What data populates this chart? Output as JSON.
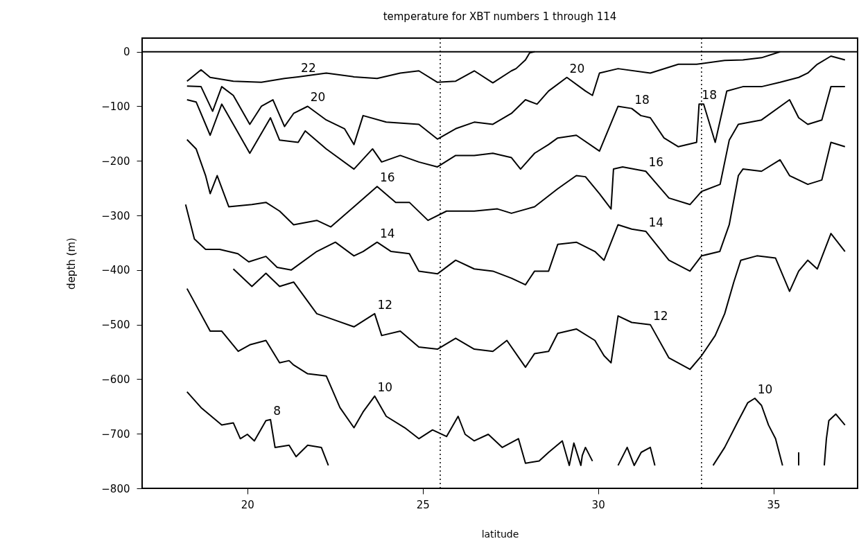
{
  "chart_data": {
    "type": "line",
    "title": "temperature for XBT numbers 1 through 114",
    "xlabel": "latitude",
    "ylabel": "depth (m)",
    "xlim": [
      17,
      37.4
    ],
    "xticks": [
      20,
      25,
      30,
      35
    ],
    "ylim": [
      -800,
      25
    ],
    "yticks": [
      0,
      -100,
      -200,
      -300,
      -400,
      -500,
      -600,
      -700,
      -800
    ],
    "grid": false,
    "marker": "none",
    "line_style": "solid",
    "series": [
      {
        "color": "#000000",
        "x": [
          18.28,
          18.68,
          18.94,
          19.6,
          20.4,
          21.06,
          21.45,
          22.25,
          23.04,
          23.7,
          24.36,
          24.89,
          25.42,
          25.94,
          26.47,
          27.0,
          27.53,
          27.66,
          27.93,
          28.05,
          28.19
        ],
        "values": [
          -54,
          -33,
          -47,
          -54,
          -56,
          -49,
          -46,
          -39,
          -46,
          -49,
          -39,
          -35,
          -56,
          -54,
          -35,
          -57,
          -35,
          -31,
          -15,
          -2,
          0
        ]
      },
      {
        "color": "#000000",
        "x": [
          18.28,
          18.68,
          19.01,
          19.27,
          19.6,
          20.07,
          20.4,
          20.73,
          21.06,
          21.32,
          21.72,
          22.25,
          22.77,
          23.04,
          23.3,
          23.96,
          24.89,
          25.42,
          25.94,
          26.47,
          27.0,
          27.53,
          27.93,
          28.26,
          28.59,
          29.11,
          29.64,
          29.84,
          30.04,
          30.57,
          31.49,
          32.29,
          32.81,
          33.61,
          34.13,
          34.66,
          35.19
        ],
        "values": [
          -63,
          -64,
          -109,
          -64,
          -80,
          -133,
          -100,
          -88,
          -137,
          -113,
          -100,
          -125,
          -141,
          -170,
          -117,
          -129,
          -133,
          -160,
          -141,
          -129,
          -133,
          -113,
          -88,
          -96,
          -72,
          -47,
          -72,
          -80,
          -39,
          -31,
          -39,
          -23,
          -23,
          -16,
          -15,
          -11,
          0
        ]
      },
      {
        "color": "#000000",
        "x": [
          18.28,
          18.54,
          18.94,
          19.27,
          19.6,
          20.07,
          20.66,
          20.92,
          21.45,
          21.65,
          22.25,
          23.04,
          23.57,
          23.83,
          24.36,
          24.89,
          25.42,
          25.94,
          26.47,
          27.0,
          27.53,
          27.79,
          28.19,
          28.59,
          28.85,
          29.38,
          30.04,
          30.57,
          30.96,
          31.22,
          31.49,
          31.88,
          32.29,
          32.81,
          32.88,
          33.01,
          33.34,
          33.67,
          34.13,
          34.66,
          35.19,
          35.72,
          35.98,
          36.25,
          36.64,
          37.04
        ],
        "values": [
          -88,
          -92,
          -153,
          -96,
          -133,
          -186,
          -121,
          -162,
          -166,
          -145,
          -178,
          -215,
          -178,
          -202,
          -190,
          -202,
          -211,
          -190,
          -190,
          -186,
          -194,
          -215,
          -186,
          -170,
          -158,
          -153,
          -182,
          -100,
          -104,
          -117,
          -121,
          -158,
          -174,
          -166,
          -96,
          -96,
          -166,
          -72,
          -64,
          -64,
          -56,
          -47,
          -39,
          -23,
          -8,
          -15
        ]
      },
      {
        "color": "#000000",
        "x": [
          18.28,
          18.54,
          18.81,
          18.94,
          19.14,
          19.47,
          20.13,
          20.53,
          20.92,
          21.32,
          21.98,
          22.38,
          23.04,
          23.7,
          24.23,
          24.62,
          25.15,
          25.68,
          26.47,
          27.13,
          27.53,
          28.19,
          28.85,
          29.38,
          29.64,
          30.04,
          30.37,
          30.44,
          30.7,
          31.36,
          32.02,
          32.62,
          32.95,
          33.48,
          33.74,
          34.0,
          34.66,
          35.46,
          35.72,
          35.98,
          36.38,
          36.64,
          37.04
        ],
        "values": [
          -161,
          -178,
          -227,
          -260,
          -227,
          -284,
          -280,
          -276,
          -292,
          -317,
          -309,
          -321,
          -284,
          -247,
          -276,
          -276,
          -309,
          -292,
          -292,
          -288,
          -296,
          -284,
          -251,
          -227,
          -229,
          -260,
          -288,
          -215,
          -211,
          -219,
          -268,
          -280,
          -256,
          -243,
          -162,
          -133,
          -125,
          -88,
          -121,
          -133,
          -125,
          -64,
          -64
        ]
      },
      {
        "color": "#000000",
        "x": [
          18.24,
          18.49,
          18.81,
          19.21,
          19.73,
          20.04,
          20.53,
          20.85,
          21.25,
          21.98,
          22.51,
          23.04,
          23.3,
          23.7,
          24.1,
          24.62,
          24.89,
          25.42,
          25.94,
          26.47,
          27.0,
          27.53,
          27.93,
          28.19,
          28.59,
          28.85,
          29.38,
          29.91,
          30.17,
          30.57,
          30.96,
          31.36,
          32.02,
          32.62,
          32.95,
          33.47,
          33.74,
          34.0,
          34.13,
          34.66,
          35.19,
          35.46,
          35.98,
          36.38,
          36.64,
          37.04
        ],
        "values": [
          -280,
          -343,
          -362,
          -362,
          -370,
          -385,
          -375,
          -395,
          -400,
          -366,
          -349,
          -374,
          -366,
          -349,
          -366,
          -370,
          -402,
          -407,
          -382,
          -398,
          -402,
          -415,
          -427,
          -402,
          -402,
          -353,
          -349,
          -366,
          -382,
          -317,
          -325,
          -329,
          -382,
          -402,
          -374,
          -366,
          -317,
          -227,
          -215,
          -219,
          -198,
          -227,
          -243,
          -235,
          -166,
          -174
        ]
      },
      {
        "color": "#000000",
        "x": [
          19.6,
          20.13,
          20.53,
          20.92,
          21.32,
          21.98,
          22.51,
          23.04,
          23.63,
          23.83,
          24.36,
          24.89,
          25.42,
          25.94,
          26.47,
          27.0,
          27.4,
          27.93,
          28.19,
          28.59,
          28.85,
          29.38,
          29.91,
          30.17,
          30.37,
          30.57,
          30.96,
          31.49,
          32.02,
          32.62,
          32.95,
          33.34,
          33.61,
          33.87,
          34.07,
          34.53,
          35.06,
          35.46,
          35.72,
          35.98,
          36.25,
          36.64,
          37.04
        ],
        "values": [
          -398,
          -430,
          -406,
          -430,
          -422,
          -480,
          -492,
          -504,
          -480,
          -520,
          -512,
          -541,
          -545,
          -525,
          -545,
          -549,
          -529,
          -578,
          -553,
          -549,
          -516,
          -508,
          -529,
          -557,
          -570,
          -484,
          -496,
          -500,
          -561,
          -582,
          -557,
          -520,
          -480,
          -422,
          -382,
          -374,
          -378,
          -439,
          -402,
          -382,
          -398,
          -333,
          -366
        ]
      },
      {
        "color": "#000000",
        "x": [
          18.28,
          18.94,
          19.27,
          19.74,
          20.07,
          20.53,
          20.92,
          21.19,
          21.32,
          21.72,
          22.25,
          22.64,
          23.04,
          23.3,
          23.63,
          23.96,
          24.49,
          24.89,
          25.28,
          25.68,
          26.01,
          26.21,
          26.47,
          26.87,
          27.27,
          27.73,
          27.93,
          28.32,
          28.59,
          28.98,
          29.18,
          29.31,
          29.51,
          29.55,
          29.64,
          29.84,
          30.2,
          30.57,
          30.83,
          31.03,
          31.23,
          31.49,
          31.62,
          32.5,
          33.28,
          33.61,
          34.0,
          34.27,
          34.47,
          34.66,
          34.86,
          35.06,
          35.26,
          35.5,
          35.72,
          35.72,
          36.1,
          36.45,
          36.51,
          36.58,
          36.78,
          37.04
        ],
        "values": [
          -434,
          -512,
          -512,
          -549,
          -537,
          -529,
          -570,
          -566,
          -574,
          -590,
          -594,
          -652,
          -689,
          -660,
          -631,
          -668,
          -689,
          -709,
          -693,
          -705,
          -668,
          -701,
          -713,
          -701,
          -725,
          -709,
          -754,
          -750,
          -734,
          -713,
          -758,
          -717,
          -758,
          -740,
          -725,
          -750,
          null,
          -758,
          -725,
          -758,
          -734,
          -725,
          -758,
          null,
          -758,
          -725,
          -676,
          -643,
          -635,
          -648,
          -684,
          -709,
          -758,
          null,
          -734,
          -758,
          null,
          -758,
          -709,
          -676,
          -664,
          -684
        ]
      },
      {
        "color": "#000000",
        "x": [
          18.28,
          18.68,
          19.27,
          19.6,
          19.8,
          20.0,
          20.2,
          20.53,
          20.66,
          20.79,
          21.19,
          21.39,
          21.72,
          22.11,
          22.31
        ],
        "values": [
          -623,
          -652,
          -684,
          -680,
          -709,
          -701,
          -713,
          -676,
          -674,
          -725,
          -721,
          -742,
          -721,
          -725,
          -758
        ]
      }
    ],
    "ref_lines": [
      {
        "axis": "y",
        "value": 0,
        "line_style": "solid",
        "color": "#000000"
      },
      {
        "axis": "x",
        "value": 25.5,
        "line_style": "dotted",
        "color": "#000000"
      },
      {
        "axis": "x",
        "value": 32.95,
        "line_style": "dotted",
        "color": "#000000"
      }
    ],
    "annotations": [
      {
        "text": "22",
        "x": 21.45,
        "y": -46
      },
      {
        "text": "20",
        "x": 21.72,
        "y": -100
      },
      {
        "text": "20",
        "x": 29.11,
        "y": -47
      },
      {
        "text": "18",
        "x": 30.96,
        "y": -104
      },
      {
        "text": "18",
        "x": 32.88,
        "y": -96
      },
      {
        "text": "16",
        "x": 23.7,
        "y": -247
      },
      {
        "text": "16",
        "x": 31.36,
        "y": -219
      },
      {
        "text": "14",
        "x": 23.7,
        "y": -349
      },
      {
        "text": "14",
        "x": 31.36,
        "y": -329
      },
      {
        "text": "12",
        "x": 23.63,
        "y": -480
      },
      {
        "text": "12",
        "x": 31.49,
        "y": -500
      },
      {
        "text": "10",
        "x": 23.63,
        "y": -631
      },
      {
        "text": "10",
        "x": 34.47,
        "y": -635
      },
      {
        "text": "8",
        "x": 20.66,
        "y": -674
      }
    ]
  }
}
